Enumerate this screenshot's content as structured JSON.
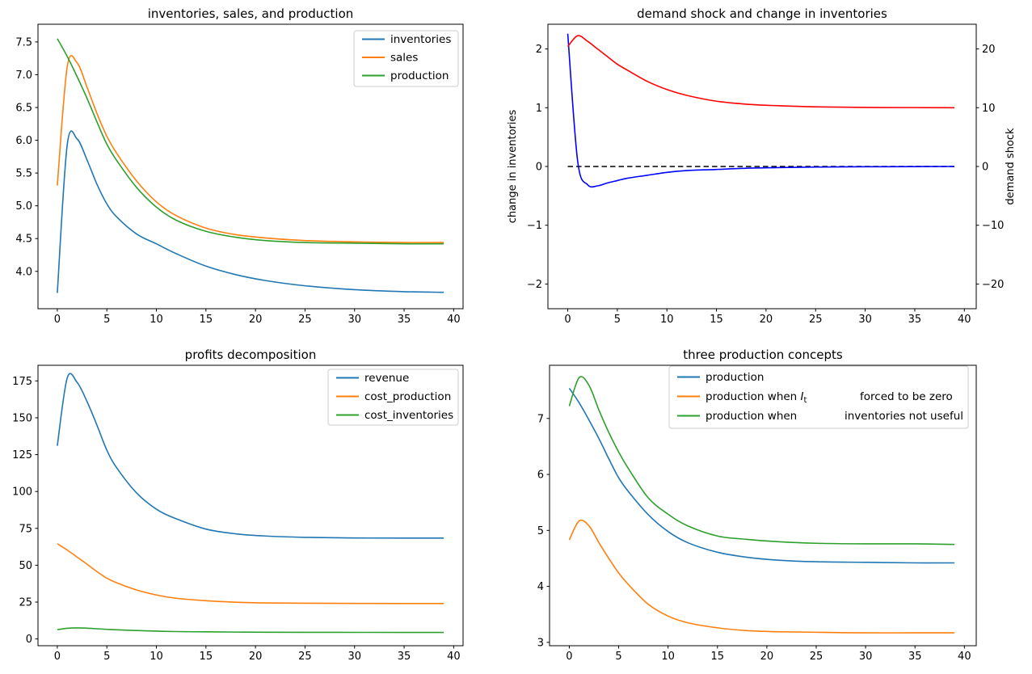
{
  "figure": {
    "background": "#ffffff",
    "spine_color": "#000000",
    "tick_color": "#000000"
  },
  "chart_data": [
    {
      "type": "line",
      "title": "inventories, sales, and production",
      "x": [
        0,
        1,
        2,
        3,
        4,
        5,
        6,
        8,
        10,
        12,
        15,
        18,
        21,
        25,
        30,
        35,
        39
      ],
      "x_axis": {
        "lim": [
          -1.95,
          40.95
        ],
        "ticks": [
          0,
          5,
          10,
          15,
          20,
          25,
          30,
          35,
          40
        ],
        "tick_labels": [
          "0",
          "5",
          "10",
          "15",
          "20",
          "25",
          "30",
          "35",
          "40"
        ]
      },
      "y_axis": {
        "lim": [
          3.43,
          7.77
        ],
        "ticks": [
          4.0,
          4.5,
          5.0,
          5.5,
          6.0,
          6.5,
          7.0,
          7.5
        ],
        "tick_labels": [
          "4.0",
          "4.5",
          "5.0",
          "5.5",
          "6.0",
          "6.5",
          "7.0",
          "7.5"
        ],
        "label": "",
        "label_color": "#000000"
      },
      "series": [
        {
          "name": "inventories",
          "color": "#1f77b4",
          "style": "solid",
          "axis": "left",
          "values": [
            3.67,
            5.93,
            6.02,
            5.7,
            5.33,
            5.03,
            4.83,
            4.57,
            4.42,
            4.27,
            4.08,
            3.95,
            3.86,
            3.78,
            3.72,
            3.69,
            3.68
          ]
        },
        {
          "name": "sales",
          "color": "#ff7f0e",
          "style": "solid",
          "axis": "left",
          "values": [
            5.31,
            7.12,
            7.18,
            6.81,
            6.41,
            6.06,
            5.8,
            5.38,
            5.06,
            4.85,
            4.66,
            4.56,
            4.51,
            4.47,
            4.45,
            4.44,
            4.44
          ]
        },
        {
          "name": "production",
          "color": "#2ca02c",
          "style": "solid",
          "axis": "left",
          "values": [
            7.55,
            7.28,
            6.97,
            6.64,
            6.28,
            5.94,
            5.69,
            5.28,
            4.98,
            4.78,
            4.61,
            4.52,
            4.47,
            4.44,
            4.43,
            4.42,
            4.42
          ]
        }
      ],
      "legend": {
        "entries": [
          {
            "color": "#1f77b4",
            "segments": [
              {
                "text": "inventories"
              }
            ]
          },
          {
            "color": "#ff7f0e",
            "segments": [
              {
                "text": "sales"
              }
            ]
          },
          {
            "color": "#2ca02c",
            "segments": [
              {
                "text": "production"
              }
            ]
          }
        ]
      }
    },
    {
      "type": "line",
      "title": "demand shock and change in inventories",
      "x": [
        0,
        1,
        2,
        3,
        4,
        5,
        6,
        8,
        10,
        12,
        15,
        18,
        21,
        25,
        30,
        35,
        39
      ],
      "x_axis": {
        "lim": [
          -2.0,
          41.2
        ],
        "ticks": [
          0,
          5,
          10,
          15,
          20,
          25,
          30,
          35,
          40
        ],
        "tick_labels": [
          "0",
          "5",
          "10",
          "15",
          "20",
          "25",
          "30",
          "35",
          "40"
        ]
      },
      "y_axis": {
        "lim": [
          -2.42,
          2.42
        ],
        "ticks": [
          -2,
          -1,
          0,
          1,
          2
        ],
        "tick_labels": [
          "−2",
          "−1",
          "0",
          "1",
          "2"
        ],
        "label": "change in inventories",
        "label_color": "#0000ff"
      },
      "y2_axis": {
        "lim": [
          -24.2,
          24.2
        ],
        "ticks": [
          -20,
          -10,
          0,
          10,
          20
        ],
        "tick_labels": [
          "−20",
          "−10",
          "0",
          "10",
          "20"
        ],
        "label": "demand shock",
        "label_color": "#ff0000"
      },
      "series": [
        {
          "name": "zero-reference",
          "color": "#000000",
          "style": "dashed",
          "axis": "left",
          "values": [
            0,
            0,
            0,
            0,
            0,
            0,
            0,
            0,
            0,
            0,
            0,
            0,
            0,
            0,
            0,
            0,
            0
          ]
        },
        {
          "name": "change in inventories",
          "color": "#0000ff",
          "style": "solid",
          "axis": "left",
          "values": [
            2.26,
            0.09,
            -0.31,
            -0.33,
            -0.28,
            -0.24,
            -0.2,
            -0.15,
            -0.1,
            -0.07,
            -0.05,
            -0.03,
            -0.02,
            -0.01,
            -0.005,
            -0.002,
            0.0
          ]
        },
        {
          "name": "demand shock",
          "color": "#ff0000",
          "style": "solid",
          "axis": "right",
          "values": [
            20.4,
            22.25,
            21.3,
            20.0,
            18.7,
            17.4,
            16.4,
            14.5,
            13.1,
            12.1,
            11.1,
            10.6,
            10.35,
            10.15,
            10.05,
            10.02,
            10.0
          ]
        }
      ],
      "legend": null
    },
    {
      "type": "line",
      "title": "profits decomposition",
      "x": [
        0,
        1,
        2,
        3,
        4,
        5,
        6,
        8,
        10,
        12,
        15,
        18,
        21,
        25,
        30,
        35,
        39
      ],
      "x_axis": {
        "lim": [
          -1.95,
          40.95
        ],
        "ticks": [
          0,
          5,
          10,
          15,
          20,
          25,
          30,
          35,
          40
        ],
        "tick_labels": [
          "0",
          "5",
          "10",
          "15",
          "20",
          "25",
          "30",
          "35",
          "40"
        ]
      },
      "y_axis": {
        "lim": [
          -4.6,
          185.6
        ],
        "ticks": [
          0,
          25,
          50,
          75,
          100,
          125,
          150,
          175
        ],
        "tick_labels": [
          "0",
          "25",
          "50",
          "75",
          "100",
          "125",
          "150",
          "175"
        ],
        "label": "",
        "label_color": "#000000"
      },
      "series": [
        {
          "name": "revenue",
          "color": "#1f77b4",
          "style": "solid",
          "axis": "left",
          "values": [
            131,
            177,
            174,
            161,
            145,
            128,
            116,
            99,
            88,
            81.5,
            74.5,
            71.3,
            69.8,
            68.9,
            68.5,
            68.4,
            68.4
          ]
        },
        {
          "name": "cost_production",
          "color": "#ff7f0e",
          "style": "solid",
          "axis": "left",
          "values": [
            64.6,
            60.3,
            55.5,
            50.7,
            45.7,
            41.2,
            38.1,
            33.2,
            29.8,
            27.6,
            25.9,
            24.9,
            24.4,
            24.2,
            24.1,
            24.0,
            24.0
          ]
        },
        {
          "name": "cost_inventories",
          "color": "#2ca02c",
          "style": "solid",
          "axis": "left",
          "values": [
            6.3,
            7.2,
            7.5,
            7.3,
            6.9,
            6.5,
            6.2,
            5.7,
            5.3,
            5.0,
            4.8,
            4.65,
            4.55,
            4.5,
            4.45,
            4.42,
            4.4
          ]
        }
      ],
      "legend": {
        "entries": [
          {
            "color": "#1f77b4",
            "segments": [
              {
                "text": "revenue"
              }
            ]
          },
          {
            "color": "#ff7f0e",
            "segments": [
              {
                "text": "cost_production"
              }
            ]
          },
          {
            "color": "#2ca02c",
            "segments": [
              {
                "text": "cost_inventories"
              }
            ]
          }
        ]
      }
    },
    {
      "type": "line",
      "title": "three production concepts",
      "x": [
        0,
        1,
        2,
        3,
        4,
        5,
        6,
        8,
        10,
        12,
        15,
        18,
        21,
        25,
        30,
        35,
        39
      ],
      "x_axis": {
        "lim": [
          -2.0,
          41.2
        ],
        "ticks": [
          0,
          5,
          10,
          15,
          20,
          25,
          30,
          35,
          40
        ],
        "tick_labels": [
          "0",
          "5",
          "10",
          "15",
          "20",
          "25",
          "30",
          "35",
          "40"
        ]
      },
      "y_axis": {
        "lim": [
          2.94,
          7.95
        ],
        "ticks": [
          3,
          4,
          5,
          6,
          7
        ],
        "tick_labels": [
          "3",
          "4",
          "5",
          "6",
          "7"
        ],
        "label": "",
        "label_color": "#000000"
      },
      "series": [
        {
          "name": "production",
          "color": "#1f77b4",
          "style": "solid",
          "axis": "left",
          "values": [
            7.54,
            7.28,
            6.97,
            6.64,
            6.28,
            5.94,
            5.69,
            5.28,
            4.98,
            4.78,
            4.61,
            4.52,
            4.47,
            4.44,
            4.43,
            4.42,
            4.42
          ]
        },
        {
          "name": "production when It forced to be zero",
          "color": "#ff7f0e",
          "style": "solid",
          "axis": "left",
          "values": [
            4.83,
            5.17,
            5.08,
            4.78,
            4.5,
            4.24,
            4.03,
            3.68,
            3.47,
            3.35,
            3.26,
            3.21,
            3.19,
            3.18,
            3.17,
            3.17,
            3.17
          ]
        },
        {
          "name": "production when inventories not useful",
          "color": "#2ca02c",
          "style": "solid",
          "axis": "left",
          "values": [
            7.22,
            7.73,
            7.59,
            7.15,
            6.75,
            6.4,
            6.1,
            5.58,
            5.29,
            5.08,
            4.9,
            4.84,
            4.8,
            4.77,
            4.76,
            4.76,
            4.75
          ]
        }
      ],
      "legend": {
        "entries": [
          {
            "color": "#1f77b4",
            "segments": [
              {
                "text": "production"
              }
            ]
          },
          {
            "color": "#ff7f0e",
            "segments": [
              {
                "text": "production when "
              },
              {
                "text": "I",
                "italic": true
              },
              {
                "text": "t",
                "sub": true
              },
              {
                "text": "forced to be zero",
                "x": 191
              }
            ]
          },
          {
            "color": "#2ca02c",
            "segments": [
              {
                "text": "production when"
              },
              {
                "text": "inventories not useful",
                "x": 172
              }
            ]
          }
        ]
      }
    }
  ]
}
